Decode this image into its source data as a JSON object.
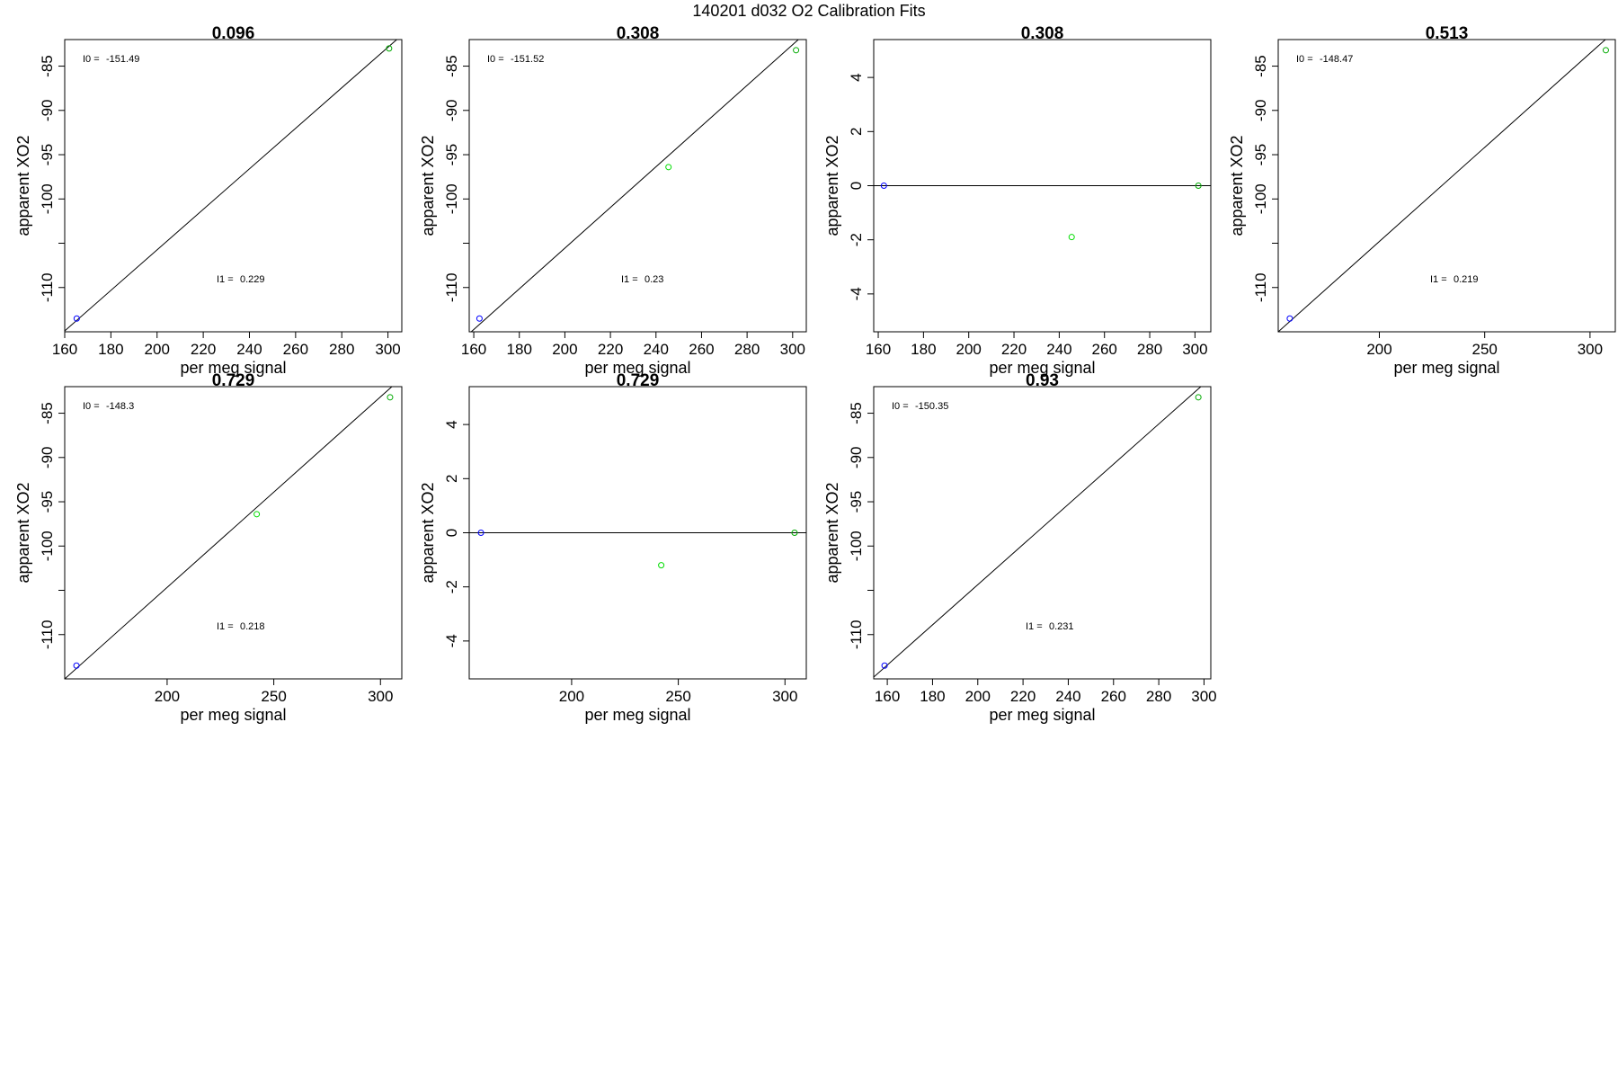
{
  "figure_title": "140201   d032   O2 Calibration Fits",
  "chart_data": [
    {
      "type": "scatter",
      "title": "0.096",
      "xlabel": "per meg signal",
      "ylabel": "apparent XO2",
      "xlim": [
        160,
        306
      ],
      "ylim": [
        -115,
        -82
      ],
      "xticks": [
        160,
        180,
        200,
        220,
        240,
        260,
        280,
        300
      ],
      "yticks": [
        -85,
        -90,
        -95,
        -100,
        -105,
        -110
      ],
      "ytick_labels": [
        "-85",
        "-90",
        "-95",
        "-100",
        "",
        "-110"
      ],
      "annotations": {
        "I0_label": "I0 =",
        "I0": "-151.49",
        "I1_label": "I1 =",
        "I1": "0.229"
      },
      "points": [
        {
          "x": 165.2,
          "y": -113.5,
          "color": "#0000ff"
        },
        {
          "x": 300.5,
          "y": -83.0,
          "color": "#00aa00"
        }
      ],
      "fit_line": {
        "x1": 160,
        "y1": -114.9,
        "x2": 306,
        "y2": -81.5
      }
    },
    {
      "type": "scatter",
      "title": "0.308",
      "xlabel": "per meg signal",
      "ylabel": "apparent XO2",
      "xlim": [
        158,
        306
      ],
      "ylim": [
        -115,
        -82
      ],
      "xticks": [
        160,
        180,
        200,
        220,
        240,
        260,
        280,
        300
      ],
      "yticks": [
        -85,
        -90,
        -95,
        -100,
        -105,
        -110
      ],
      "ytick_labels": [
        "-85",
        "-90",
        "-95",
        "-100",
        "",
        "-110"
      ],
      "annotations": {
        "I0_label": "I0 =",
        "I0": "-151.52",
        "I1_label": "I1 =",
        "I1": "0.23"
      },
      "points": [
        {
          "x": 162.5,
          "y": -113.5,
          "color": "#0000ff"
        },
        {
          "x": 245.5,
          "y": -96.4,
          "color": "#00dd00"
        },
        {
          "x": 301.5,
          "y": -83.2,
          "color": "#00aa00"
        }
      ],
      "fit_line": {
        "x1": 158,
        "y1": -115.2,
        "x2": 306,
        "y2": -81.2
      }
    },
    {
      "type": "scatter",
      "title": "0.308",
      "xlabel": "per meg signal",
      "ylabel": "apparent XO2",
      "xlim": [
        158,
        307
      ],
      "ylim": [
        -5.4,
        5.4
      ],
      "xticks": [
        160,
        180,
        200,
        220,
        240,
        260,
        280,
        300
      ],
      "yticks": [
        4,
        2,
        0,
        -2,
        -4
      ],
      "ytick_labels": [
        "4",
        "2",
        "0",
        "-2",
        "-4"
      ],
      "annotations": null,
      "points": [
        {
          "x": 162.5,
          "y": 0.0,
          "color": "#0000ff"
        },
        {
          "x": 245.5,
          "y": -1.9,
          "color": "#00dd00"
        },
        {
          "x": 301.5,
          "y": 0.0,
          "color": "#00aa00"
        }
      ],
      "fit_line": {
        "x1": 158,
        "y1": 0,
        "x2": 307,
        "y2": 0
      }
    },
    {
      "type": "scatter",
      "title": "0.513",
      "xlabel": "per meg signal",
      "ylabel": "apparent XO2",
      "xlim": [
        152,
        312
      ],
      "ylim": [
        -115,
        -82
      ],
      "xticks": [
        200,
        250,
        300
      ],
      "yticks": [
        -85,
        -90,
        -95,
        -100,
        -105,
        -110
      ],
      "ytick_labels": [
        "-85",
        "-90",
        "-95",
        "-100",
        "",
        "-110"
      ],
      "annotations": {
        "I0_label": "I0 =",
        "I0": "-148.47",
        "I1_label": "I1 =",
        "I1": "0.219"
      },
      "points": [
        {
          "x": 157.5,
          "y": -113.5,
          "color": "#0000ff"
        },
        {
          "x": 307.5,
          "y": -83.2,
          "color": "#00aa00"
        }
      ],
      "fit_line": {
        "x1": 152,
        "y1": -115.0,
        "x2": 312,
        "y2": -81.0
      }
    },
    {
      "type": "scatter",
      "title": "0.729",
      "xlabel": "per meg signal",
      "ylabel": "apparent XO2",
      "xlim": [
        152,
        310
      ],
      "ylim": [
        -115,
        -82
      ],
      "xticks": [
        200,
        250,
        300
      ],
      "yticks": [
        -85,
        -90,
        -95,
        -100,
        -105,
        -110
      ],
      "ytick_labels": [
        "-85",
        "-90",
        "-95",
        "-100",
        "",
        "-110"
      ],
      "annotations": {
        "I0_label": "I0 =",
        "I0": "-148.3",
        "I1_label": "I1 =",
        "I1": "0.218"
      },
      "points": [
        {
          "x": 157.5,
          "y": -113.5,
          "color": "#0000ff"
        },
        {
          "x": 242.0,
          "y": -96.4,
          "color": "#00dd00"
        },
        {
          "x": 304.5,
          "y": -83.2,
          "color": "#00aa00"
        }
      ],
      "fit_line": {
        "x1": 152,
        "y1": -115.0,
        "x2": 310,
        "y2": -81.0
      }
    },
    {
      "type": "scatter",
      "title": "0.729",
      "xlabel": "per meg signal",
      "ylabel": "apparent XO2",
      "xlim": [
        152,
        310
      ],
      "ylim": [
        -5.4,
        5.4
      ],
      "xticks": [
        200,
        250,
        300
      ],
      "yticks": [
        4,
        2,
        0,
        -2,
        -4
      ],
      "ytick_labels": [
        "4",
        "2",
        "0",
        "-2",
        "-4"
      ],
      "annotations": null,
      "points": [
        {
          "x": 157.5,
          "y": 0.0,
          "color": "#0000ff"
        },
        {
          "x": 242.0,
          "y": -1.2,
          "color": "#00dd00"
        },
        {
          "x": 304.5,
          "y": 0.0,
          "color": "#00aa00"
        }
      ],
      "fit_line": {
        "x1": 152,
        "y1": 0,
        "x2": 310,
        "y2": 0
      }
    },
    {
      "type": "scatter",
      "title": "0.93",
      "xlabel": "per meg signal",
      "ylabel": "apparent XO2",
      "xlim": [
        154,
        303
      ],
      "ylim": [
        -115,
        -82
      ],
      "xticks": [
        160,
        180,
        200,
        220,
        240,
        260,
        280,
        300
      ],
      "yticks": [
        -85,
        -90,
        -95,
        -100,
        -105,
        -110
      ],
      "ytick_labels": [
        "-85",
        "-90",
        "-95",
        "-100",
        "",
        "-110"
      ],
      "annotations": {
        "I0_label": "I0 =",
        "I0": "-150.35",
        "I1_label": "I1 =",
        "I1": "0.231"
      },
      "points": [
        {
          "x": 158.8,
          "y": -113.5,
          "color": "#0000ff"
        },
        {
          "x": 297.5,
          "y": -83.2,
          "color": "#00aa00"
        }
      ],
      "fit_line": {
        "x1": 154,
        "y1": -114.8,
        "x2": 303,
        "y2": -81.0
      }
    }
  ]
}
